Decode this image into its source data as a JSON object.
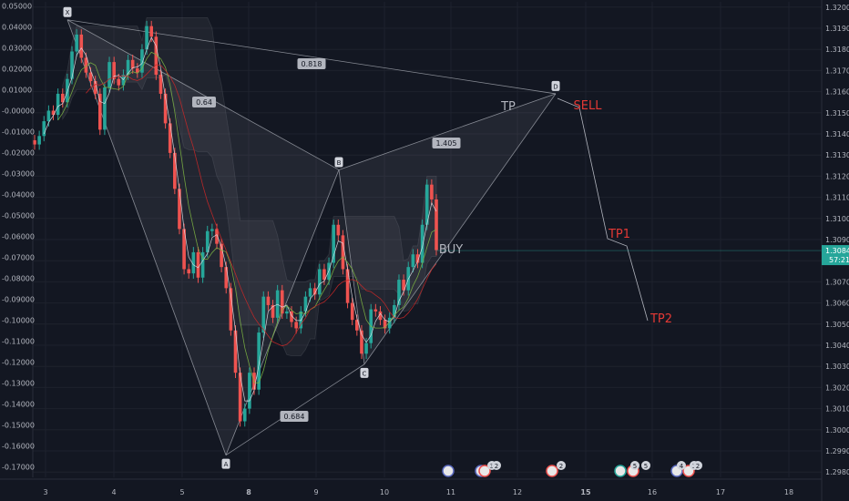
{
  "chart_data": {
    "type": "candlestick",
    "left_axis": {
      "ticks": [
        "0.05000",
        "0.04000",
        "0.03000",
        "0.02000",
        "0.01000",
        "-0.00000",
        "-0.01000",
        "-0.02000",
        "-0.03000",
        "-0.04000",
        "-0.05000",
        "-0.06000",
        "-0.07000",
        "-0.08000",
        "-0.09000",
        "-0.10000",
        "-0.11000",
        "-0.12000",
        "-0.13000",
        "-0.14000",
        "-0.15000",
        "-0.16000",
        "-0.17000"
      ],
      "range": [
        -0.175,
        0.052
      ]
    },
    "right_axis": {
      "ticks": [
        "1.32000",
        "1.31900",
        "1.31800",
        "1.31700",
        "1.31600",
        "1.31500",
        "1.31400",
        "1.31300",
        "1.31200",
        "1.31100",
        "1.31000",
        "1.30900",
        "1.30800",
        "1.30700",
        "1.30600",
        "1.30500",
        "1.30400",
        "1.30300",
        "1.30200",
        "1.30100",
        "1.30000",
        "1.29900",
        "1.29800"
      ],
      "range": [
        1.29775,
        1.32025
      ],
      "current_price": "1.30848",
      "countdown": "57:21"
    },
    "x_axis": {
      "ticks": [
        "3",
        "4",
        "5",
        "8",
        "9",
        "10",
        "11",
        "12",
        "15",
        "16",
        "17",
        "18"
      ],
      "bold_ticks": [
        "8",
        "15"
      ]
    },
    "pattern": {
      "points": [
        {
          "label": "X",
          "date": "3",
          "value": 1.3194
        },
        {
          "label": "A",
          "date": "8",
          "value": 1.2988
        },
        {
          "label": "B",
          "date": "9",
          "value": 1.3123
        },
        {
          "label": "C",
          "date": "10",
          "value": 1.3031
        },
        {
          "label": "D",
          "date": "12",
          "value": 1.3159
        }
      ],
      "ratios": [
        "0.818",
        "0.64",
        "1.405",
        "0.684"
      ]
    },
    "annotations": [
      "TP",
      "SELL",
      "BUY",
      "TP1",
      "TP2"
    ],
    "event_badges": [
      "3",
      "2",
      "2",
      "5",
      "5",
      "4",
      "3",
      "2"
    ],
    "candles": [
      [
        1.3137,
        1.3135
      ],
      [
        1.3135,
        1.3139
      ],
      [
        1.3139,
        1.3146
      ],
      [
        1.3146,
        1.3151
      ],
      [
        1.3151,
        1.3149
      ],
      [
        1.3149,
        1.3159
      ],
      [
        1.3159,
        1.3155
      ],
      [
        1.3155,
        1.3166
      ],
      [
        1.3166,
        1.3179
      ],
      [
        1.3179,
        1.3187
      ],
      [
        1.3187,
        1.3176
      ],
      [
        1.3176,
        1.3169
      ],
      [
        1.3169,
        1.3165
      ],
      [
        1.3165,
        1.3159
      ],
      [
        1.3159,
        1.3142
      ],
      [
        1.3142,
        1.3162
      ],
      [
        1.3162,
        1.3174
      ],
      [
        1.3174,
        1.3166
      ],
      [
        1.3166,
        1.3163
      ],
      [
        1.3163,
        1.3168
      ],
      [
        1.3168,
        1.3175
      ],
      [
        1.3175,
        1.3171
      ],
      [
        1.3171,
        1.3169
      ],
      [
        1.3169,
        1.318
      ],
      [
        1.318,
        1.3191
      ],
      [
        1.3191,
        1.3186
      ],
      [
        1.3186,
        1.3168
      ],
      [
        1.3168,
        1.3159
      ],
      [
        1.3159,
        1.3145
      ],
      [
        1.3145,
        1.3131
      ],
      [
        1.3131,
        1.3114
      ],
      [
        1.3114,
        1.3095
      ],
      [
        1.3095,
        1.3076
      ],
      [
        1.3076,
        1.3074
      ],
      [
        1.3074,
        1.3084
      ],
      [
        1.3084,
        1.3072
      ],
      [
        1.3072,
        1.3084
      ],
      [
        1.3084,
        1.3094
      ],
      [
        1.3094,
        1.3095
      ],
      [
        1.3095,
        1.3088
      ],
      [
        1.3088,
        1.3077
      ],
      [
        1.3077,
        1.3067
      ],
      [
        1.3067,
        1.3047
      ],
      [
        1.3047,
        1.3027
      ],
      [
        1.3027,
        1.3004
      ],
      [
        1.3004,
        1.301
      ],
      [
        1.301,
        1.3027
      ],
      [
        1.3027,
        1.3019
      ],
      [
        1.3019,
        1.3046
      ],
      [
        1.3046,
        1.3063
      ],
      [
        1.3063,
        1.3059
      ],
      [
        1.3059,
        1.3053
      ],
      [
        1.3053,
        1.3066
      ],
      [
        1.3066,
        1.3055
      ],
      [
        1.3055,
        1.3056
      ],
      [
        1.3056,
        1.3051
      ],
      [
        1.3051,
        1.3048
      ],
      [
        1.3048,
        1.3056
      ],
      [
        1.3056,
        1.3063
      ],
      [
        1.3063,
        1.3067
      ],
      [
        1.3067,
        1.3064
      ],
      [
        1.3064,
        1.3076
      ],
      [
        1.3076,
        1.3071
      ],
      [
        1.3071,
        1.3079
      ],
      [
        1.3079,
        1.3097
      ],
      [
        1.3097,
        1.3092
      ],
      [
        1.3092,
        1.3076
      ],
      [
        1.3076,
        1.306
      ],
      [
        1.306,
        1.3052
      ],
      [
        1.3052,
        1.3047
      ],
      [
        1.3047,
        1.3036
      ],
      [
        1.3036,
        1.3041
      ],
      [
        1.3041,
        1.3057
      ],
      [
        1.3057,
        1.3056
      ],
      [
        1.3056,
        1.3052
      ],
      [
        1.3052,
        1.3048
      ],
      [
        1.3048,
        1.3053
      ],
      [
        1.3053,
        1.3059
      ],
      [
        1.3059,
        1.3071
      ],
      [
        1.3071,
        1.3066
      ],
      [
        1.3066,
        1.3077
      ],
      [
        1.3077,
        1.3083
      ],
      [
        1.3083,
        1.3079
      ],
      [
        1.3079,
        1.3097
      ],
      [
        1.3097,
        1.3116
      ],
      [
        1.3116,
        1.3109
      ],
      [
        1.3109,
        1.3085
      ]
    ]
  }
}
